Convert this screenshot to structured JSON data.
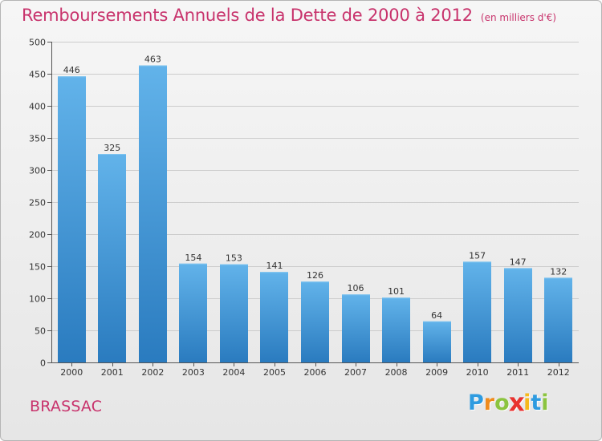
{
  "chart_title": "Remboursements Annuels de la Dette de 2000 à 2012",
  "chart_unit": "(en milliers d'€)",
  "commune": "BRASSAC",
  "logo": {
    "letters": [
      "P",
      "r",
      "o",
      "x",
      "i",
      "t",
      "i"
    ],
    "colors": [
      "#2e9be0",
      "#f08b1c",
      "#8bc43f",
      "#e8322f",
      "#f6b91c",
      "#2e9be0",
      "#8bc43f"
    ]
  },
  "colors": {
    "title": "#c8336c",
    "bar_top": "#62b3ea",
    "bar_bottom": "#2a7bbf",
    "grid": "#cccccc"
  },
  "chart_data": {
    "type": "bar",
    "categories": [
      "2000",
      "2001",
      "2002",
      "2003",
      "2004",
      "2005",
      "2006",
      "2007",
      "2008",
      "2009",
      "2010",
      "2011",
      "2012"
    ],
    "values": [
      446,
      325,
      463,
      154,
      153,
      141,
      126,
      106,
      101,
      64,
      157,
      147,
      132
    ],
    "ylim": [
      0,
      500
    ],
    "yticks": [
      "0",
      "50",
      "100",
      "150",
      "200",
      "250",
      "300",
      "350",
      "400",
      "450",
      "500"
    ],
    "grid": true,
    "legend": "none"
  }
}
